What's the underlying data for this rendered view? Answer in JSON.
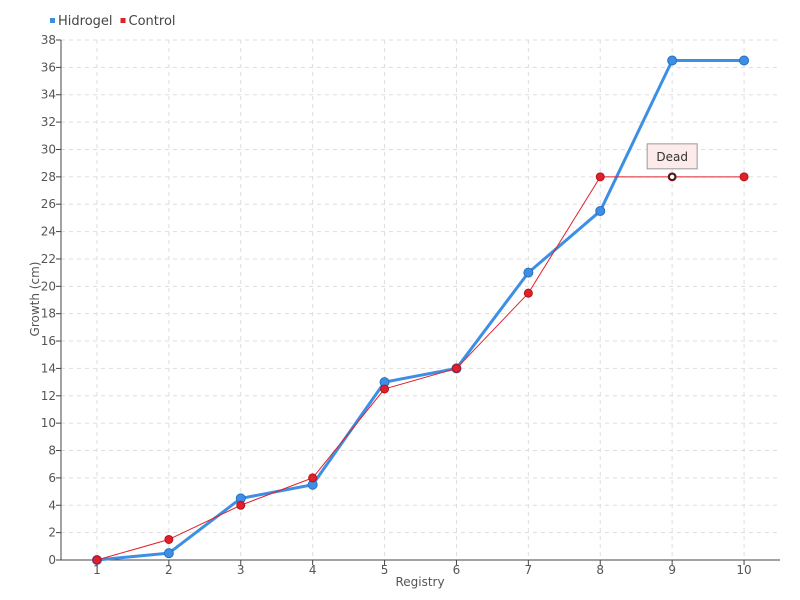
{
  "chart_data": {
    "type": "line",
    "title": "",
    "xlabel": "Registry",
    "ylabel": "Growth (cm)",
    "x": [
      1,
      2,
      3,
      4,
      5,
      6,
      7,
      8,
      9,
      10
    ],
    "xlim": [
      0.5,
      10.5
    ],
    "ylim": [
      0,
      38
    ],
    "ytick_step": 2,
    "grid": true,
    "legend_position": "top-left",
    "series": [
      {
        "name": "Hidrogel",
        "color": "#3d8fe6",
        "values": [
          0,
          0.5,
          4.5,
          5.5,
          13,
          14,
          21,
          25.5,
          36.5,
          36.5
        ]
      },
      {
        "name": "Control",
        "color": "#e0202a",
        "values": [
          0,
          1.5,
          4,
          6,
          12.5,
          14,
          19.5,
          28,
          28,
          28
        ]
      }
    ],
    "annotations": [
      {
        "text": "Dead",
        "x": 9,
        "y": 28,
        "series": "Control"
      }
    ]
  }
}
